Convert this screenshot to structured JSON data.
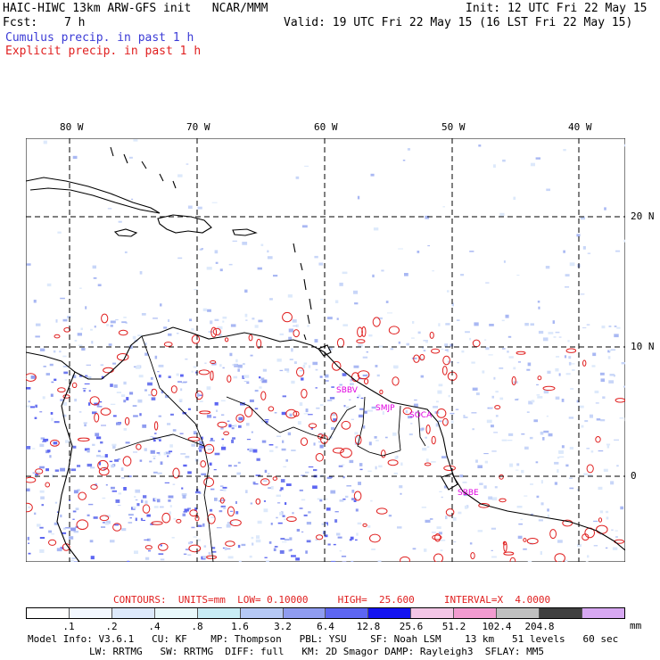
{
  "header": {
    "title_left": "HAIC-HIWC 13km ARW-GFS init   NCAR/MMM",
    "init": "Init: 12 UTC Fri 22 May 15",
    "fcst_label": "Fcst:",
    "fcst_value": "7 h",
    "valid": "Valid: 19 UTC Fri 22 May 15 (16 LST Fri 22 May 15)",
    "legend_cumulus": "Cumulus precip. in past 1 h",
    "legend_explicit": "Explicit precip. in past 1 h"
  },
  "map": {
    "lon_labels": [
      "80 W",
      "70 W",
      "60 W",
      "50 W",
      "40 W"
    ],
    "lat_labels": [
      "20 N",
      "10 N",
      "0"
    ],
    "stations": [
      "SBBV",
      "SMJP",
      "SOCA",
      "SBBE"
    ]
  },
  "contours": {
    "text": "CONTOURS:  UNITS=mm  LOW= 0.10000     HIGH=  25.600     INTERVAL=X  4.0000"
  },
  "scale": {
    "colors": [
      "#ffffff",
      "#f2f7ff",
      "#dde9fb",
      "#e8f8fb",
      "#c8ecf5",
      "#b6c9f5",
      "#8f9cf0",
      "#5d66f2",
      "#1414f0",
      "#f3c6e6",
      "#f29bd0",
      "#c0c0c0",
      "#404040",
      "#d7a8f2"
    ],
    "ticks": [
      ".1",
      ".2",
      ".4",
      ".8",
      "1.6",
      "3.2",
      "6.4",
      "12.8",
      "25.6",
      "51.2",
      "102.4",
      "204.8"
    ],
    "unit": "mm"
  },
  "footer": {
    "line1": "Model Info: V3.6.1   CU: KF    MP: Thompson   PBL: YSU    SF: Noah LSM    13 km   51 levels   60 sec",
    "line2": "LW: RRTMG   SW: RRTMG  DIFF: full   KM: 2D Smagor DAMP: Rayleigh3  SFLAY: MM5"
  }
}
